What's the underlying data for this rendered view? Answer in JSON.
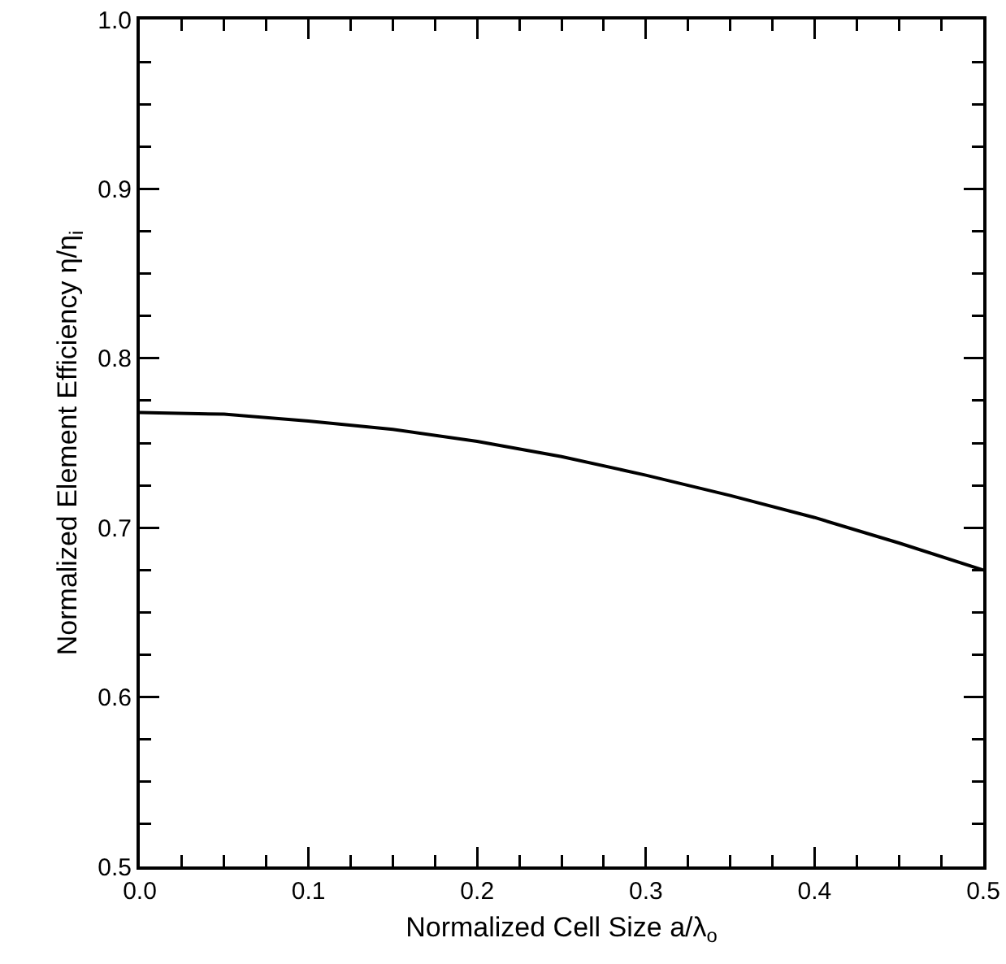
{
  "chart_data": {
    "type": "line",
    "xlabel": "Normalized Cell Size a/λ$_{o}$",
    "ylabel": "Normalized Element Efficiency η/η$_{i}$",
    "x": [
      0,
      0.05,
      0.1,
      0.15,
      0.2,
      0.25,
      0.3,
      0.35,
      0.4,
      0.45,
      0.5
    ],
    "series": [
      {
        "color": "#000000",
        "values": [
          0.768,
          0.767,
          0.763,
          0.758,
          0.751,
          0.742,
          0.731,
          0.719,
          0.706,
          0.691,
          0.675
        ]
      }
    ],
    "xlim": [
      0,
      0.5
    ],
    "ylim": [
      0.5,
      1.0
    ],
    "xticks": [
      {
        "value": 0,
        "label": "0.0"
      },
      {
        "value": 0.025,
        "label": null
      },
      {
        "value": 0.05,
        "label": null
      },
      {
        "value": 0.075,
        "label": null
      },
      {
        "value": 0.1,
        "label": "0.1"
      },
      {
        "value": 0.125,
        "label": null
      },
      {
        "value": 0.15,
        "label": null
      },
      {
        "value": 0.175,
        "label": null
      },
      {
        "value": 0.2,
        "label": "0.2"
      },
      {
        "value": 0.225,
        "label": null
      },
      {
        "value": 0.25,
        "label": null
      },
      {
        "value": 0.275,
        "label": null
      },
      {
        "value": 0.3,
        "label": "0.3"
      },
      {
        "value": 0.325,
        "label": null
      },
      {
        "value": 0.35,
        "label": null
      },
      {
        "value": 0.375,
        "label": null
      },
      {
        "value": 0.4,
        "label": "0.4"
      },
      {
        "value": 0.425,
        "label": null
      },
      {
        "value": 0.45,
        "label": null
      },
      {
        "value": 0.475,
        "label": null
      },
      {
        "value": 0.5,
        "label": "0.5"
      }
    ],
    "yticks": [
      {
        "value": 0.5,
        "label": "0.5"
      },
      {
        "value": 0.525,
        "label": null
      },
      {
        "value": 0.55,
        "label": null
      },
      {
        "value": 0.575,
        "label": null
      },
      {
        "value": 0.6,
        "label": "0.6"
      },
      {
        "value": 0.625,
        "label": null
      },
      {
        "value": 0.65,
        "label": null
      },
      {
        "value": 0.675,
        "label": null
      },
      {
        "value": 0.7,
        "label": "0.7"
      },
      {
        "value": 0.725,
        "label": null
      },
      {
        "value": 0.75,
        "label": null
      },
      {
        "value": 0.775,
        "label": null
      },
      {
        "value": 0.8,
        "label": "0.8"
      },
      {
        "value": 0.825,
        "label": null
      },
      {
        "value": 0.85,
        "label": null
      },
      {
        "value": 0.875,
        "label": null
      },
      {
        "value": 0.9,
        "label": "0.9"
      },
      {
        "value": 0.925,
        "label": null
      },
      {
        "value": 0.95,
        "label": null
      },
      {
        "value": 0.975,
        "label": null
      },
      {
        "value": 1.0,
        "label": "1.0"
      }
    ],
    "marker": "none",
    "line_style": "solid"
  }
}
